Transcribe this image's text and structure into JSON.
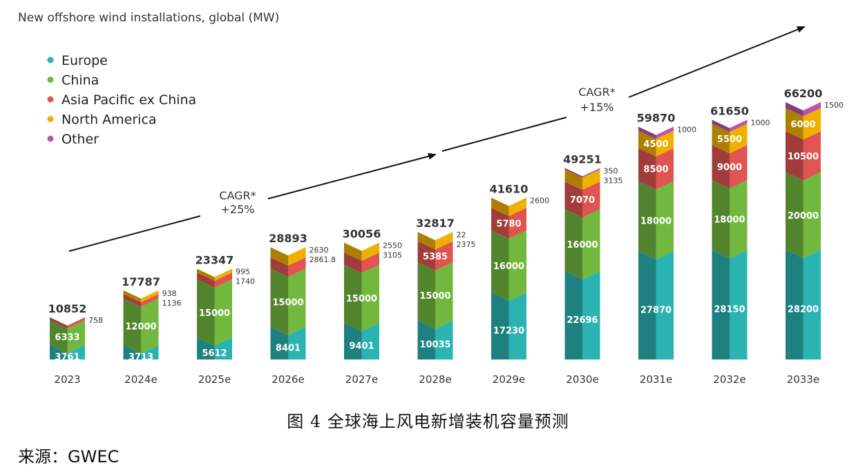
{
  "chart_data": {
    "type": "bar",
    "stacked": true,
    "title": "New offshore wind installations, global (MW)",
    "categories": [
      "2023",
      "2024e",
      "2025e",
      "2026e",
      "2027e",
      "2028e",
      "2029e",
      "2030e",
      "2031e",
      "2032e",
      "2033e"
    ],
    "totals": [
      "10852",
      "17787",
      "23347",
      "28893",
      "30056",
      "32817",
      "41610",
      "49251",
      "59870",
      "61650",
      "66200"
    ],
    "series": [
      {
        "name": "Europe",
        "color": "#2ab3b1",
        "values": [
          3761,
          3713,
          5612,
          8401,
          9401,
          10035,
          17230,
          22696,
          27870,
          28150,
          28200
        ],
        "labels": [
          "3761",
          "3713",
          "5612",
          "8401",
          "9401",
          "10035",
          "17230",
          "22696",
          "27870",
          "28150",
          "28200"
        ]
      },
      {
        "name": "China",
        "color": "#72b83e",
        "values": [
          6333,
          12000,
          15000,
          15000,
          15000,
          15000,
          16000,
          16000,
          18000,
          18000,
          20000
        ],
        "labels": [
          "6333",
          "12000",
          "15000",
          "15000",
          "15000",
          "15000",
          "16000",
          "16000",
          "18000",
          "18000",
          "20000"
        ]
      },
      {
        "name": "Asia Pacific ex China",
        "color": "#e05452",
        "values": [
          758,
          1136,
          1740,
          2861.8,
          3105,
          5385,
          5780,
          7070,
          8500,
          9000,
          10500
        ],
        "labels": [
          "758",
          "1136",
          "1740",
          "2861.8",
          "3105",
          "5385",
          "5780",
          "7070",
          "8500",
          "9000",
          "10500"
        ]
      },
      {
        "name": "North America",
        "color": "#f0b000",
        "values": [
          0,
          938,
          995,
          2630,
          2550,
          2375,
          2600,
          3135,
          4500,
          5500,
          6000
        ],
        "labels": [
          "",
          "938",
          "995",
          "2630",
          "2550",
          "2375",
          "2600",
          "3135",
          "4500",
          "5500",
          "6000"
        ]
      },
      {
        "name": "Other",
        "color": "#b954a9",
        "values": [
          0,
          0,
          0,
          0,
          0,
          22,
          0,
          350,
          1000,
          1000,
          1500
        ],
        "labels": [
          "",
          "",
          "",
          "",
          "",
          "22",
          "",
          "350",
          "1000",
          "1000",
          "1500"
        ]
      }
    ],
    "legend_position": "top-left",
    "grid": false,
    "annotations": [
      {
        "text_line1": "CAGR*",
        "text_line2": "+25%"
      },
      {
        "text_line1": "CAGR*",
        "text_line2": "+15%"
      }
    ]
  },
  "caption": "图 4 全球海上风电新增装机容量预测",
  "source": "来源：GWEC"
}
